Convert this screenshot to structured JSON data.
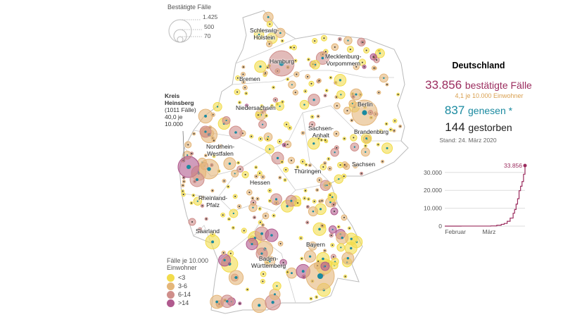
{
  "size_legend": {
    "title": "Bestätigte Fälle",
    "values": [
      "1.425",
      "500",
      "70"
    ]
  },
  "rate_legend": {
    "title": "Fälle je 10.000\nEinwohner",
    "items": [
      {
        "label": "<3",
        "color": "#f2dc4c"
      },
      {
        "label": "3-6",
        "color": "#e4b67a"
      },
      {
        "label": "6-14",
        "color": "#cf8e8a"
      },
      {
        "label": ">14",
        "color": "#b05a8e"
      }
    ]
  },
  "annotation": {
    "title": "Kreis\nHeinsberg",
    "text": "(1011 Fälle)\n40,0 je\n10.000"
  },
  "states": [
    "Schleswig-\nHolstein",
    "Mecklenburg-\nVorpommern",
    "Hamburg",
    "Bremen",
    "Niedersachsen",
    "Berlin",
    "Brandenburg",
    "Sachsen-\nAnhalt",
    "Nordrhein-\nWestfalen",
    "Thüringen",
    "Sachsen",
    "Hessen",
    "Rheinland-\nPfalz",
    "Saarland",
    "Bayern",
    "Baden-\nWürttemberg"
  ],
  "summary": {
    "title": "Deutschland",
    "confirmed": "33.856",
    "confirmed_label": "bestätigte Fälle",
    "per_capita": "4,1  je 10.000 Einwohner",
    "recovered": "837",
    "recovered_label": "genesen *",
    "deaths": "144",
    "deaths_label": "gestorben",
    "date": "Stand: 24. März 2020"
  },
  "colors": {
    "confirmed": "#9b2c5e",
    "per_capita": "#d9a050",
    "recovered": "#1a8aa0",
    "deaths": "#222222"
  },
  "chart_data": {
    "type": "line",
    "title": "",
    "xlabel": "",
    "ylabel": "",
    "x_ticks": [
      "Februar",
      "März"
    ],
    "y_ticks": [
      "0",
      "10.000",
      "20.000",
      "30.000"
    ],
    "ylim": [
      0,
      33856
    ],
    "end_label": "33.856",
    "x": [
      "01.02",
      "10.02",
      "20.02",
      "26.02",
      "01.03",
      "05.03",
      "08.03",
      "10.03",
      "12.03",
      "14.03",
      "16.03",
      "17.03",
      "18.03",
      "19.03",
      "20.03",
      "21.03",
      "22.03",
      "23.03",
      "24.03"
    ],
    "values": [
      10,
      16,
      16,
      20,
      130,
      480,
      1000,
      1500,
      2700,
      4500,
      7200,
      9300,
      12300,
      15300,
      19800,
      22300,
      24900,
      29000,
      33856
    ]
  }
}
